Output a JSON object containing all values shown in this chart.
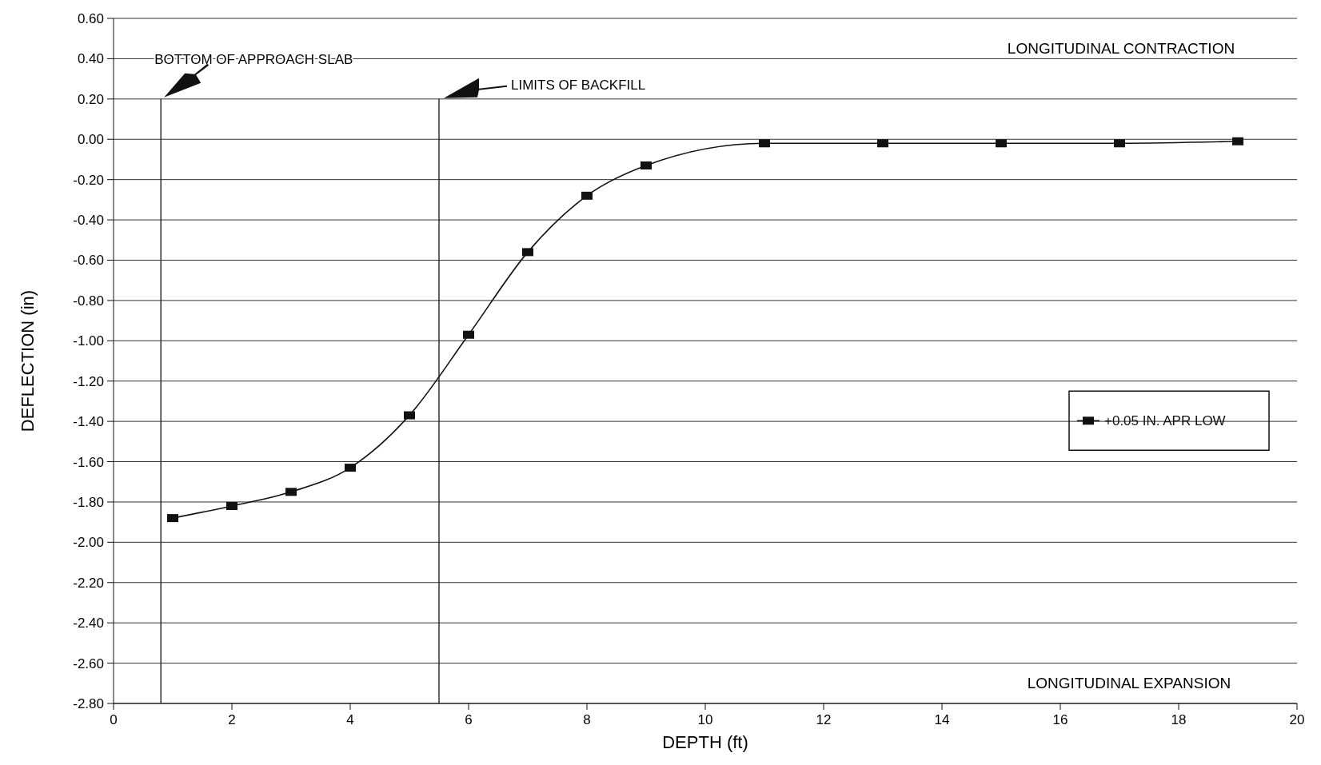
{
  "chart_data": {
    "type": "line",
    "xlabel": "DEPTH (ft)",
    "ylabel": "DEFLECTION (in)",
    "xlim": [
      0,
      20
    ],
    "xticks": [
      0,
      2,
      4,
      6,
      8,
      10,
      12,
      14,
      16,
      18,
      20
    ],
    "ylim": [
      -2.8,
      0.6
    ],
    "yticks": [
      {
        "value": 0.6,
        "label": "0.60"
      },
      {
        "value": 0.4,
        "label": "0.40"
      },
      {
        "value": 0.2,
        "label": "0.20"
      },
      {
        "value": 0,
        "label": "0.00"
      },
      {
        "value": -0.2,
        "label": "-0.20"
      },
      {
        "value": -0.4,
        "label": "-0.40"
      },
      {
        "value": -0.6,
        "label": "-0.60"
      },
      {
        "value": -0.8,
        "label": "-0.80"
      },
      {
        "value": -1,
        "label": "-1.00"
      },
      {
        "value": -1.2,
        "label": "-1.20"
      },
      {
        "value": -1.4,
        "label": "-1.40"
      },
      {
        "value": -1.6,
        "label": "-1.60"
      },
      {
        "value": -1.8,
        "label": "-1.80"
      },
      {
        "value": -2,
        "label": "-2.00"
      },
      {
        "value": -2.2,
        "label": "-2.20"
      },
      {
        "value": -2.4,
        "label": "-2.40"
      },
      {
        "value": -2.6,
        "label": "-2.60"
      },
      {
        "value": -2.8,
        "label": "-2.80"
      }
    ],
    "series": [
      {
        "name": "+0.05 IN. APR LOW",
        "color": "#111111",
        "x": [
          1,
          2,
          3,
          4,
          5,
          6,
          7,
          8,
          9,
          11,
          13,
          15,
          17,
          19
        ],
        "values": [
          -1.88,
          -1.82,
          -1.75,
          -1.63,
          -1.37,
          -0.97,
          -0.56,
          -0.28,
          -0.13,
          -0.02,
          -0.02,
          -0.02,
          -0.02,
          -0.01
        ]
      }
    ],
    "ref_lines": [
      {
        "axis": "x",
        "value": 0.8,
        "label": "BOTTOM OF APPROACH SLAB",
        "color": "#111111"
      },
      {
        "axis": "x",
        "value": 5.5,
        "label": "LIMITS OF BACKFILL",
        "color": "#111111"
      }
    ],
    "annotations": [
      "LONGITUDINAL CONTRACTION",
      "LONGITUDINAL EXPANSION"
    ],
    "grid": "y",
    "legend": "right",
    "marker": "square",
    "line_style": "solid"
  }
}
